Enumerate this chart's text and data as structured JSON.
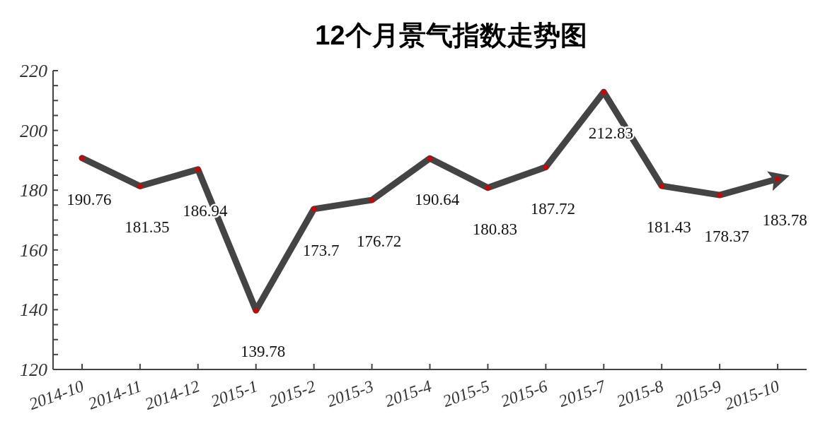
{
  "chart_data": {
    "type": "line",
    "title": "12个月景气指数走势图",
    "categories": [
      "2014-10",
      "2014-11",
      "2014-12",
      "2015-1",
      "2015-2",
      "2015-3",
      "2015-4",
      "2015-5",
      "2015-6",
      "2015-7",
      "2015-8",
      "2015-9",
      "2015-10"
    ],
    "series": [
      {
        "color": "#444444",
        "values": [
          190.76,
          181.35,
          186.94,
          139.78,
          173.7,
          176.72,
          190.64,
          180.83,
          187.72,
          212.83,
          181.43,
          178.37,
          183.78
        ]
      }
    ],
    "ylim": [
      120,
      220
    ],
    "yticks": [
      120,
      {
        "value": 125,
        "label": null
      },
      {
        "value": 130,
        "label": null
      },
      {
        "value": 135,
        "label": null
      },
      140,
      {
        "value": 145,
        "label": null
      },
      {
        "value": 150,
        "label": null
      },
      {
        "value": 155,
        "label": null
      },
      160,
      {
        "value": 165,
        "label": null
      },
      {
        "value": 170,
        "label": null
      },
      {
        "value": 175,
        "label": null
      },
      180,
      {
        "value": 185,
        "label": null
      },
      {
        "value": 190,
        "label": null
      },
      {
        "value": 195,
        "label": null
      },
      200,
      {
        "value": 205,
        "label": null
      },
      {
        "value": 210,
        "label": null
      },
      {
        "value": 215,
        "label": null
      },
      220
    ],
    "data_labels": true,
    "marker": "circle",
    "line_style": "solid"
  }
}
